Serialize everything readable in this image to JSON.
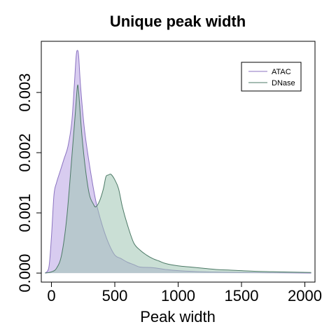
{
  "chart_data": {
    "type": "area",
    "title": "Unique peak width",
    "xlabel": "Peak width",
    "ylabel": "",
    "xlim": [
      -80,
      2080
    ],
    "ylim": [
      -0.00015,
      0.00385
    ],
    "x_ticks": [
      0,
      500,
      1000,
      1500,
      2000
    ],
    "x_tick_labels": [
      "0",
      "500",
      "1000",
      "1500",
      "2000"
    ],
    "y_ticks": [
      0.0,
      0.001,
      0.002,
      0.003
    ],
    "y_tick_labels": [
      "0.000",
      "0.001",
      "0.002",
      "0.003"
    ],
    "legend": {
      "position": "top-right",
      "entries": [
        "ATAC",
        "DNase"
      ]
    },
    "series": [
      {
        "name": "ATAC",
        "line_color": "#8b73c1",
        "fill_color": "#c7b6ea",
        "fill_opacity": 0.7,
        "points": [
          [
            -50,
            0.0
          ],
          [
            -20,
            0.0001
          ],
          [
            0,
            0.0006
          ],
          [
            20,
            0.0013
          ],
          [
            40,
            0.0015
          ],
          [
            70,
            0.0017
          ],
          [
            100,
            0.0019
          ],
          [
            130,
            0.0021
          ],
          [
            160,
            0.0025
          ],
          [
            180,
            0.0031
          ],
          [
            195,
            0.0036
          ],
          [
            205,
            0.0037
          ],
          [
            215,
            0.0036
          ],
          [
            230,
            0.0031
          ],
          [
            260,
            0.0024
          ],
          [
            300,
            0.0018
          ],
          [
            350,
            0.0012
          ],
          [
            400,
            0.0008
          ],
          [
            450,
            0.0005
          ],
          [
            500,
            0.0003
          ],
          [
            550,
            0.00024
          ],
          [
            600,
            0.00018
          ],
          [
            650,
            0.00014
          ],
          [
            700,
            0.0001
          ],
          [
            800,
            9e-05
          ],
          [
            900,
            6e-05
          ],
          [
            1000,
            4e-05
          ],
          [
            1200,
            2e-05
          ],
          [
            1500,
            1e-05
          ],
          [
            2050,
            0.0
          ]
        ]
      },
      {
        "name": "DNase",
        "line_color": "#4d7a67",
        "fill_color": "#9fc4b3",
        "fill_opacity": 0.55,
        "points": [
          [
            -50,
            0.0
          ],
          [
            0,
            2e-05
          ],
          [
            40,
            8e-05
          ],
          [
            80,
            0.0003
          ],
          [
            120,
            0.0009
          ],
          [
            160,
            0.0019
          ],
          [
            190,
            0.0027
          ],
          [
            205,
            0.0031
          ],
          [
            215,
            0.003
          ],
          [
            240,
            0.0023
          ],
          [
            270,
            0.0017
          ],
          [
            300,
            0.0013
          ],
          [
            330,
            0.00115
          ],
          [
            350,
            0.0011
          ],
          [
            380,
            0.0012
          ],
          [
            410,
            0.0014
          ],
          [
            430,
            0.0016
          ],
          [
            450,
            0.00163
          ],
          [
            470,
            0.00164
          ],
          [
            500,
            0.00155
          ],
          [
            530,
            0.0014
          ],
          [
            560,
            0.0011
          ],
          [
            600,
            0.0008
          ],
          [
            650,
            0.0005
          ],
          [
            700,
            0.00038
          ],
          [
            750,
            0.0003
          ],
          [
            800,
            0.00024
          ],
          [
            850,
            0.0002
          ],
          [
            900,
            0.00016
          ],
          [
            1000,
            0.00012
          ],
          [
            1100,
            0.0001
          ],
          [
            1200,
            8e-05
          ],
          [
            1300,
            6e-05
          ],
          [
            1400,
            5e-05
          ],
          [
            1600,
            3e-05
          ],
          [
            1800,
            2e-05
          ],
          [
            2050,
            1e-05
          ]
        ]
      }
    ]
  }
}
